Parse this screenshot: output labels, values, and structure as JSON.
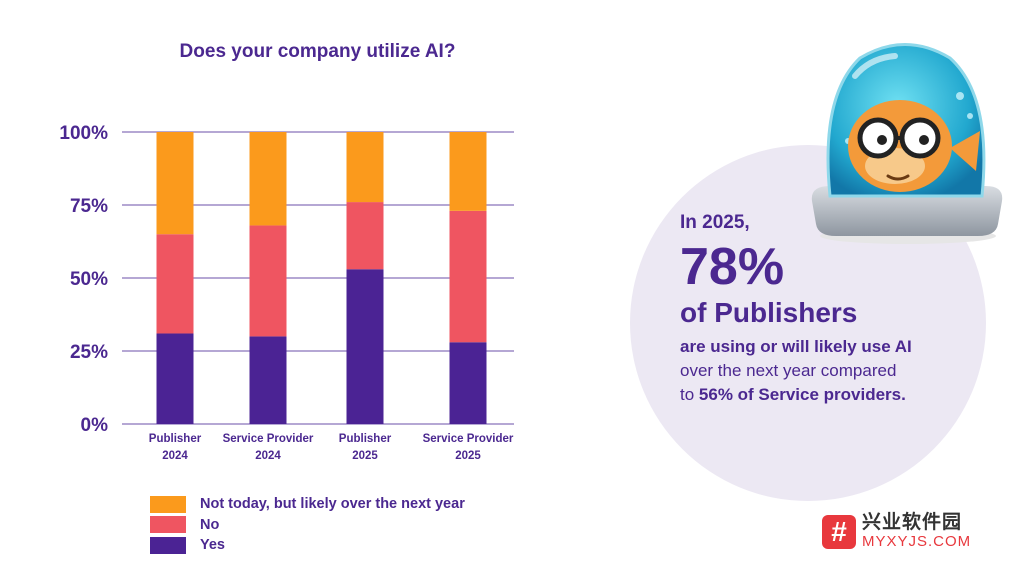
{
  "chart_data": {
    "type": "bar",
    "stacked": true,
    "title": "Does your company utilize AI?",
    "categories": [
      [
        "Publisher",
        "2024"
      ],
      [
        "Service Provider",
        "2024"
      ],
      [
        "Publisher",
        "2025"
      ],
      [
        "Service Provider",
        "2025"
      ]
    ],
    "series": [
      {
        "name": "Yes",
        "color": "#4b2394",
        "values": [
          31,
          30,
          53,
          28
        ]
      },
      {
        "name": "No",
        "color": "#ef5561",
        "values": [
          34,
          38,
          23,
          45
        ]
      },
      {
        "name": "Not today, but likely over the next year",
        "color": "#fb9a1c",
        "values": [
          35,
          32,
          24,
          27
        ]
      }
    ],
    "y_ticks": [
      "0%",
      "25%",
      "50%",
      "75%",
      "100%"
    ],
    "ylim": [
      0,
      100
    ],
    "grid": true,
    "legend_position": "bottom-left",
    "legend_order": [
      "Not today, but likely over the next year",
      "No",
      "Yes"
    ]
  },
  "callout": {
    "year": "In 2025,",
    "big_number": "78%",
    "subject": "of Publishers",
    "line1": "are using or will likely use AI",
    "line2": "over the next year compared",
    "line3_prefix": "to ",
    "line3_bold": "56% of Service providers."
  },
  "watermark": {
    "icon_glyph": "#",
    "text_cn": "兴业软件园",
    "text_en": "MYXYJS.COM"
  },
  "mascot": {
    "icon": "fish-in-jar-icon"
  }
}
